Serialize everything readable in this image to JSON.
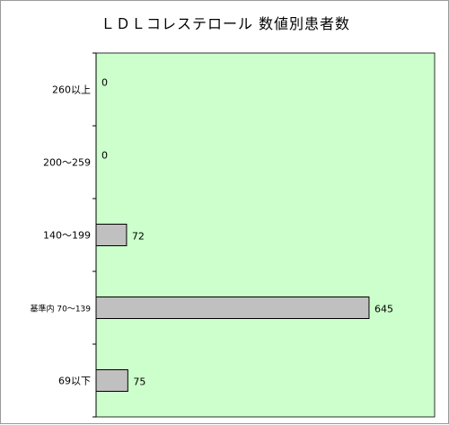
{
  "chart_data": {
    "type": "bar",
    "orientation": "horizontal",
    "title": "ＬＤＬコレステロール 数値別患者数",
    "categories": [
      "260以上",
      "200～259",
      "140～199",
      "基準内 70～139",
      "69以下"
    ],
    "values": [
      0,
      0,
      72,
      645,
      75
    ],
    "xlim": [
      0,
      800
    ],
    "xlabel": "",
    "ylabel": "",
    "grid": false,
    "legend": "none",
    "colors": {
      "plot_background": "#ccffcc",
      "bar_fill": "#c0c0c0",
      "bar_stroke": "#000000"
    }
  }
}
